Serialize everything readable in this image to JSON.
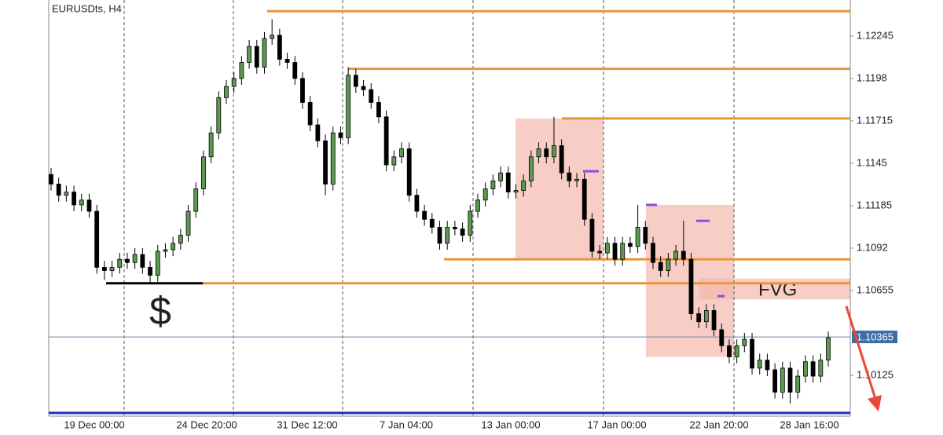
{
  "chart_data": {
    "type": "candlestick",
    "title": "EURUSDts, H4",
    "x_labels": [
      "19 Dec 00:00",
      "24 Dec 20:00",
      "31 Dec 12:00",
      "7 Jan 04:00",
      "13 Jan 00:00",
      "17 Jan 00:00",
      "22 Jan 20:00",
      "28 Jan 16:00"
    ],
    "open": [
      1.1138,
      1.1132,
      1.1125,
      1.1127,
      1.1119,
      1.1122,
      1.1115,
      1.108,
      1.1078,
      1.108,
      1.1085,
      1.1083,
      1.1088,
      1.108,
      1.1075,
      1.109,
      1.1091,
      1.1095,
      1.11,
      1.1115,
      1.1129,
      1.1149,
      1.1164,
      1.1186,
      1.1193,
      1.1198,
      1.1208,
      1.1218,
      1.1205,
      1.1223,
      1.1225,
      1.121,
      1.1208,
      1.1198,
      1.1183,
      1.1169,
      1.1159,
      1.1132,
      1.1164,
      1.1161,
      1.12,
      1.1193,
      1.1191,
      1.1183,
      1.1174,
      1.1144,
      1.1149,
      1.1154,
      1.1125,
      1.1115,
      1.111,
      1.1105,
      1.1095,
      1.1105,
      1.1104,
      1.11,
      1.1115,
      1.1122,
      1.1129,
      1.1134,
      1.1139,
      1.1127,
      1.1128,
      1.1134,
      1.1149,
      1.1154,
      1.1149,
      1.1156,
      1.1139,
      1.1134,
      1.1135,
      1.111,
      1.109,
      1.1089,
      1.1095,
      1.1085,
      1.1095,
      1.1093,
      1.1105,
      1.1095,
      1.1083,
      1.1078,
      1.1085,
      1.109,
      1.1085,
      1.1051,
      1.1046,
      1.1053,
      1.1041,
      1.1031,
      1.1024,
      1.1031,
      1.1035,
      1.1017,
      1.1022,
      1.1016,
      1.1002,
      1.1017,
      1.1002,
      1.1012,
      1.1021,
      1.1012,
      1.1022
    ],
    "high": [
      1.1142,
      1.1136,
      1.1131,
      1.1131,
      1.1126,
      1.1126,
      1.1119,
      1.1084,
      1.1084,
      1.1089,
      1.1089,
      1.1092,
      1.1092,
      1.1084,
      1.1094,
      1.1095,
      1.1099,
      1.1104,
      1.1119,
      1.1133,
      1.1153,
      1.1168,
      1.119,
      1.1197,
      1.1202,
      1.1212,
      1.1222,
      1.1222,
      1.1227,
      1.1235,
      1.1229,
      1.1214,
      1.1212,
      1.1202,
      1.1187,
      1.1173,
      1.1163,
      1.1168,
      1.1168,
      1.1205,
      1.1204,
      1.1197,
      1.1195,
      1.1187,
      1.1178,
      1.1153,
      1.1158,
      1.1158,
      1.1129,
      1.1119,
      1.1114,
      1.1109,
      1.1109,
      1.1109,
      1.1108,
      1.1119,
      1.1126,
      1.1133,
      1.1138,
      1.1143,
      1.1143,
      1.1132,
      1.1138,
      1.1153,
      1.1158,
      1.1158,
      1.1174,
      1.116,
      1.1143,
      1.1139,
      1.1139,
      1.1114,
      1.1094,
      1.1099,
      1.1099,
      1.1099,
      1.1099,
      1.1119,
      1.1109,
      1.1099,
      1.1087,
      1.1089,
      1.1094,
      1.1109,
      1.1089,
      1.1055,
      1.1057,
      1.1057,
      1.1045,
      1.1035,
      1.1035,
      1.1039,
      1.1039,
      1.1026,
      1.1026,
      1.102,
      1.1021,
      1.1021,
      1.1016,
      1.1025,
      1.1025,
      1.1026,
      1.104
    ],
    "low": [
      1.1128,
      1.1121,
      1.1121,
      1.1115,
      1.1115,
      1.1111,
      1.1076,
      1.1072,
      1.1074,
      1.1076,
      1.1079,
      1.1079,
      1.1076,
      1.107,
      1.1071,
      1.1086,
      1.1087,
      1.1091,
      1.1096,
      1.1111,
      1.1125,
      1.1145,
      1.116,
      1.1182,
      1.1189,
      1.1194,
      1.1204,
      1.1201,
      1.1201,
      1.1219,
      1.1206,
      1.1204,
      1.1194,
      1.1179,
      1.1165,
      1.1155,
      1.1125,
      1.1128,
      1.1157,
      1.1157,
      1.1189,
      1.1187,
      1.1179,
      1.117,
      1.114,
      1.114,
      1.1145,
      1.1121,
      1.1111,
      1.1106,
      1.1101,
      1.1091,
      1.1091,
      1.11,
      1.1096,
      1.1096,
      1.1111,
      1.1118,
      1.1125,
      1.113,
      1.1123,
      1.1123,
      1.1124,
      1.113,
      1.1145,
      1.1145,
      1.1145,
      1.1135,
      1.113,
      1.113,
      1.1106,
      1.1086,
      1.1085,
      1.1085,
      1.1081,
      1.1081,
      1.1089,
      1.1089,
      1.1091,
      1.1079,
      1.1074,
      1.1074,
      1.1081,
      1.1081,
      1.1047,
      1.1042,
      1.1042,
      1.1037,
      1.1027,
      1.102,
      1.102,
      1.1027,
      1.1013,
      1.1013,
      1.1012,
      1.0998,
      1.0998,
      1.0995,
      1.0998,
      1.1008,
      1.1008,
      1.1008,
      1.1018
    ],
    "close": [
      1.1132,
      1.1125,
      1.1127,
      1.1119,
      1.1122,
      1.1115,
      1.108,
      1.1078,
      1.108,
      1.1085,
      1.1083,
      1.1088,
      1.108,
      1.1075,
      1.109,
      1.1091,
      1.1095,
      1.11,
      1.1115,
      1.1129,
      1.1149,
      1.1164,
      1.1186,
      1.1193,
      1.1198,
      1.1208,
      1.1218,
      1.1205,
      1.1223,
      1.1225,
      1.121,
      1.1208,
      1.1198,
      1.1183,
      1.1169,
      1.1159,
      1.1132,
      1.1164,
      1.1161,
      1.12,
      1.1193,
      1.1191,
      1.1183,
      1.1174,
      1.1144,
      1.1149,
      1.1154,
      1.1125,
      1.1115,
      1.111,
      1.1105,
      1.1095,
      1.1105,
      1.1104,
      1.11,
      1.1115,
      1.1122,
      1.1129,
      1.1134,
      1.1139,
      1.1127,
      1.1128,
      1.1134,
      1.1149,
      1.1154,
      1.1149,
      1.1156,
      1.1139,
      1.1134,
      1.1135,
      1.111,
      1.109,
      1.1089,
      1.1095,
      1.1085,
      1.1095,
      1.1093,
      1.1105,
      1.1095,
      1.1083,
      1.1078,
      1.1085,
      1.109,
      1.1085,
      1.1051,
      1.1046,
      1.1053,
      1.1041,
      1.1031,
      1.1024,
      1.1031,
      1.1035,
      1.1017,
      1.1022,
      1.1016,
      1.1002,
      1.1017,
      1.1002,
      1.1012,
      1.1021,
      1.1012,
      1.1022,
      1.1036
    ],
    "up_color": "#5b9a4f",
    "down_color": "#000000",
    "ylim": [
      1.0987,
      1.1247
    ],
    "yticks": [
      1.12245,
      1.1198,
      1.11715,
      1.1145,
      1.11185,
      1.1092,
      1.10655,
      1.10125
    ],
    "last_price": {
      "value": 1.10365,
      "label": "1.10365"
    },
    "levels": [
      1.124,
      1.1204,
      1.1173,
      1.1085,
      1.107
    ],
    "level_color": "#e8963a",
    "support_price": 1.0989,
    "zones": [
      {
        "top": 1.1173,
        "bottom": 1.1085
      },
      {
        "top": 1.1119,
        "bottom": 1.1024
      }
    ],
    "fvg": {
      "label": "FVG",
      "top": 1.1073,
      "bottom": 1.106
    },
    "purple_marks": [
      1.114,
      1.1119,
      1.1109,
      1.1062
    ],
    "liquidity_label": "$"
  }
}
